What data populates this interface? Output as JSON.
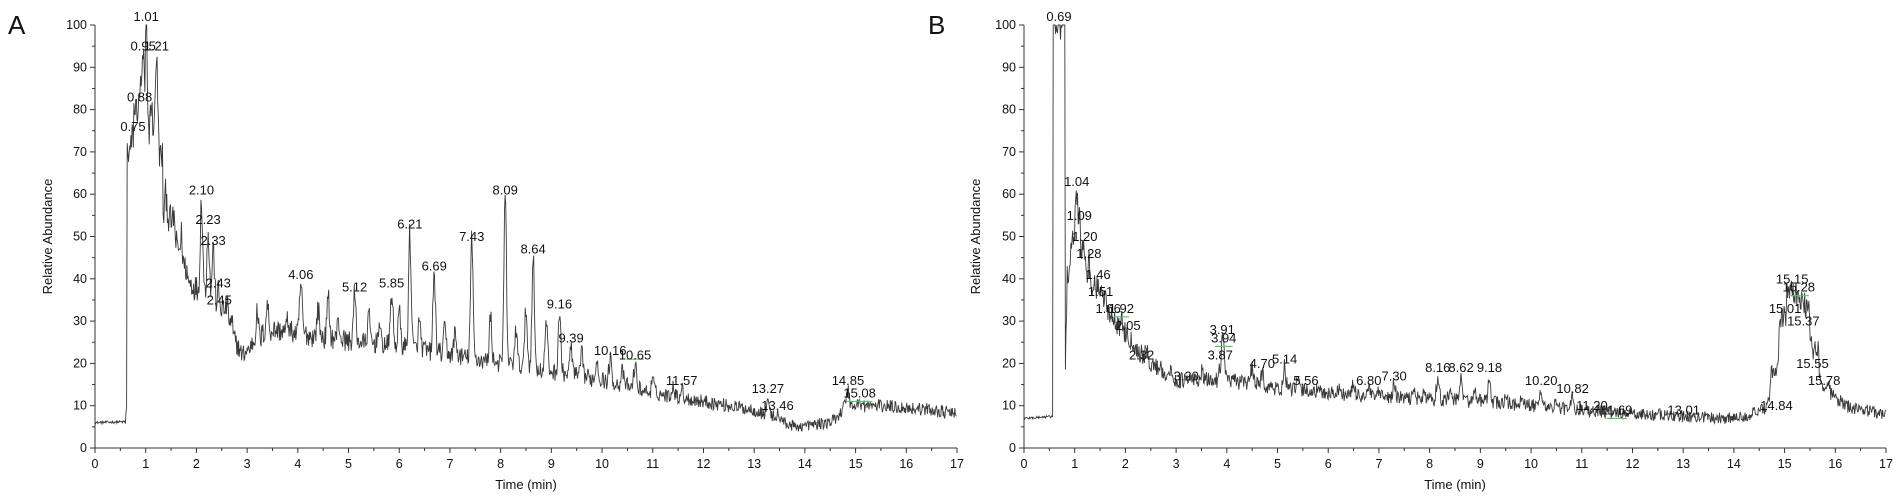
{
  "chart_data": [
    {
      "type": "line",
      "panel": "A",
      "xlabel": "Time (min)",
      "ylabel": "Relative Abundance",
      "xlim": [
        0,
        17
      ],
      "ylim": [
        0,
        100
      ],
      "xticks": [
        0,
        1,
        2,
        3,
        4,
        5,
        6,
        7,
        8,
        9,
        10,
        11,
        12,
        13,
        14,
        15,
        16,
        17
      ],
      "yticks": [
        0,
        10,
        20,
        30,
        40,
        50,
        60,
        70,
        80,
        90,
        100
      ],
      "baseline": [
        [
          0,
          6
        ],
        [
          0.6,
          6.2
        ],
        [
          0.7,
          20
        ],
        [
          0.75,
          70
        ],
        [
          0.8,
          40
        ],
        [
          0.9,
          90
        ],
        [
          1.0,
          60
        ],
        [
          1.1,
          82
        ],
        [
          1.3,
          58
        ],
        [
          1.6,
          45
        ],
        [
          1.8,
          40
        ],
        [
          2.5,
          32
        ],
        [
          2.9,
          22
        ],
        [
          3.5,
          28
        ],
        [
          4.5,
          26
        ],
        [
          6,
          24
        ],
        [
          8,
          20
        ],
        [
          9,
          18
        ],
        [
          10,
          16
        ],
        [
          11,
          13
        ],
        [
          12,
          11
        ],
        [
          13,
          9
        ],
        [
          13.8,
          5
        ],
        [
          14.5,
          6
        ],
        [
          14.85,
          10
        ],
        [
          15.5,
          10
        ],
        [
          16.5,
          9
        ],
        [
          17,
          8
        ]
      ],
      "peaks": [
        {
          "x": 0.75,
          "y": 74,
          "label": "0.75"
        },
        {
          "x": 0.88,
          "y": 81,
          "label": "0.88"
        },
        {
          "x": 0.95,
          "y": 93,
          "label": "0.95"
        },
        {
          "x": 1.01,
          "y": 100,
          "label": "1.01"
        },
        {
          "x": 1.21,
          "y": 93,
          "label": "1.21"
        },
        {
          "x": 2.1,
          "y": 59,
          "label": "2.10"
        },
        {
          "x": 2.23,
          "y": 52,
          "label": "2.23"
        },
        {
          "x": 2.33,
          "y": 47,
          "label": "2.33"
        },
        {
          "x": 2.43,
          "y": 37,
          "label": "2.43"
        },
        {
          "x": 2.45,
          "y": 33,
          "label": "2.45"
        },
        {
          "x": 4.06,
          "y": 39,
          "label": "4.06"
        },
        {
          "x": 5.12,
          "y": 36,
          "label": "5.12"
        },
        {
          "x": 5.85,
          "y": 37,
          "label": "5.85"
        },
        {
          "x": 6.21,
          "y": 51,
          "label": "6.21"
        },
        {
          "x": 6.69,
          "y": 41,
          "label": "6.69"
        },
        {
          "x": 7.43,
          "y": 48,
          "label": "7.43"
        },
        {
          "x": 8.09,
          "y": 59,
          "label": "8.09"
        },
        {
          "x": 8.64,
          "y": 45,
          "label": "8.64"
        },
        {
          "x": 9.16,
          "y": 32,
          "label": "9.16"
        },
        {
          "x": 9.39,
          "y": 24,
          "label": "9.39"
        },
        {
          "x": 10.16,
          "y": 21,
          "label": "10.16"
        },
        {
          "x": 10.65,
          "y": 20,
          "label": "10.65"
        },
        {
          "x": 11.57,
          "y": 14,
          "label": "11.57"
        },
        {
          "x": 13.27,
          "y": 12,
          "label": "13.27"
        },
        {
          "x": 13.46,
          "y": 8,
          "label": "13.46"
        },
        {
          "x": 14.85,
          "y": 14,
          "label": "14.85"
        },
        {
          "x": 15.08,
          "y": 11,
          "label": "15.08"
        }
      ],
      "extra_peaks": [
        [
          1.4,
          60
        ],
        [
          1.55,
          55
        ],
        [
          1.7,
          50
        ],
        [
          2.6,
          34
        ],
        [
          3.2,
          32
        ],
        [
          3.4,
          34
        ],
        [
          3.8,
          30
        ],
        [
          4.4,
          33
        ],
        [
          4.6,
          35
        ],
        [
          4.8,
          30
        ],
        [
          5.4,
          31
        ],
        [
          5.6,
          29
        ],
        [
          6.0,
          32
        ],
        [
          6.4,
          30
        ],
        [
          6.9,
          28
        ],
        [
          7.1,
          27
        ],
        [
          7.8,
          31
        ],
        [
          8.3,
          28
        ],
        [
          8.5,
          33
        ],
        [
          8.9,
          30
        ],
        [
          9.6,
          22
        ],
        [
          9.9,
          21
        ],
        [
          10.4,
          18
        ],
        [
          11.0,
          16
        ],
        [
          11.4,
          15
        ]
      ],
      "markers": [
        [
          10.65,
          0.35,
          21
        ],
        [
          15.08,
          0.5,
          11
        ]
      ]
    },
    {
      "type": "line",
      "panel": "B",
      "xlabel": "Time (min)",
      "ylabel": "Relative Abundance",
      "xlim": [
        0,
        17
      ],
      "ylim": [
        0,
        100
      ],
      "xticks": [
        0,
        1,
        2,
        3,
        4,
        5,
        6,
        7,
        8,
        9,
        10,
        11,
        12,
        13,
        14,
        15,
        16,
        17
      ],
      "yticks": [
        0,
        10,
        20,
        30,
        40,
        50,
        60,
        70,
        80,
        90,
        100
      ],
      "baseline": [
        [
          0,
          7
        ],
        [
          0.6,
          7.5
        ],
        [
          0.65,
          60
        ],
        [
          0.69,
          100
        ],
        [
          0.8,
          8
        ],
        [
          0.85,
          40
        ],
        [
          1.0,
          50
        ],
        [
          1.2,
          40
        ],
        [
          1.5,
          35
        ],
        [
          2.0,
          26
        ],
        [
          2.5,
          20
        ],
        [
          3.0,
          16
        ],
        [
          4.0,
          16
        ],
        [
          5.0,
          14
        ],
        [
          6.0,
          13
        ],
        [
          7.0,
          12
        ],
        [
          8.0,
          11.5
        ],
        [
          9.0,
          11
        ],
        [
          10.0,
          10
        ],
        [
          11.0,
          9
        ],
        [
          12.0,
          8
        ],
        [
          13.0,
          7.5
        ],
        [
          14.0,
          7
        ],
        [
          14.6,
          9
        ],
        [
          14.9,
          20
        ],
        [
          15.0,
          30
        ],
        [
          15.15,
          36
        ],
        [
          15.4,
          32
        ],
        [
          15.6,
          20
        ],
        [
          15.8,
          14
        ],
        [
          16.2,
          10
        ],
        [
          17,
          8
        ]
      ],
      "peaks": [
        {
          "x": 0.69,
          "y": 100,
          "label": "0.69"
        },
        {
          "x": 1.04,
          "y": 61,
          "label": "1.04"
        },
        {
          "x": 1.09,
          "y": 53,
          "label": "1.09"
        },
        {
          "x": 1.2,
          "y": 48,
          "label": "1.20"
        },
        {
          "x": 1.28,
          "y": 44,
          "label": "1.28"
        },
        {
          "x": 1.46,
          "y": 39,
          "label": "1.46"
        },
        {
          "x": 1.51,
          "y": 35,
          "label": "1.51"
        },
        {
          "x": 1.66,
          "y": 31,
          "label": "1.66"
        },
        {
          "x": 1.92,
          "y": 31,
          "label": "1.92"
        },
        {
          "x": 2.05,
          "y": 27,
          "label": "2.05"
        },
        {
          "x": 2.32,
          "y": 20,
          "label": "2.32"
        },
        {
          "x": 3.2,
          "y": 15,
          "label": "3.20"
        },
        {
          "x": 3.87,
          "y": 20,
          "label": "3.87"
        },
        {
          "x": 3.91,
          "y": 26,
          "label": "3.91"
        },
        {
          "x": 3.94,
          "y": 24,
          "label": "3.94"
        },
        {
          "x": 4.7,
          "y": 18,
          "label": "4.70"
        },
        {
          "x": 5.14,
          "y": 19,
          "label": "5.14"
        },
        {
          "x": 5.56,
          "y": 14,
          "label": "5.56"
        },
        {
          "x": 6.8,
          "y": 14,
          "label": "6.80"
        },
        {
          "x": 7.3,
          "y": 15,
          "label": "7.30"
        },
        {
          "x": 8.16,
          "y": 17,
          "label": "8.16"
        },
        {
          "x": 8.62,
          "y": 17,
          "label": "8.62"
        },
        {
          "x": 9.18,
          "y": 17,
          "label": "9.18"
        },
        {
          "x": 10.2,
          "y": 14,
          "label": "10.20"
        },
        {
          "x": 10.82,
          "y": 12,
          "label": "10.82"
        },
        {
          "x": 11.2,
          "y": 8,
          "label": "11.20"
        },
        {
          "x": 11.69,
          "y": 7,
          "label": "11.69"
        },
        {
          "x": 13.01,
          "y": 7,
          "label": "13.01"
        },
        {
          "x": 14.84,
          "y": 8,
          "label": "14.84"
        },
        {
          "x": 15.01,
          "y": 31,
          "label": "15.01"
        },
        {
          "x": 15.15,
          "y": 38,
          "label": "15.15"
        },
        {
          "x": 15.28,
          "y": 36,
          "label": "15.28"
        },
        {
          "x": 15.37,
          "y": 28,
          "label": "15.37"
        },
        {
          "x": 15.55,
          "y": 18,
          "label": "15.55"
        },
        {
          "x": 15.78,
          "y": 14,
          "label": "15.78"
        }
      ],
      "extra_peaks": [
        [
          2.6,
          18
        ],
        [
          2.8,
          17
        ],
        [
          3.5,
          18
        ],
        [
          4.3,
          17
        ],
        [
          4.5,
          19
        ],
        [
          5.4,
          16
        ],
        [
          6.2,
          14
        ],
        [
          6.5,
          15
        ],
        [
          7.0,
          13
        ],
        [
          7.7,
          14
        ],
        [
          7.9,
          13
        ],
        [
          8.4,
          14
        ],
        [
          8.9,
          14
        ],
        [
          9.5,
          12
        ],
        [
          9.8,
          11
        ],
        [
          10.5,
          11
        ],
        [
          12.5,
          8
        ],
        [
          13.5,
          7
        ]
      ],
      "markers": [
        [
          1.92,
          0.3,
          31
        ],
        [
          3.94,
          0.35,
          24
        ],
        [
          11.69,
          0.4,
          7
        ],
        [
          15.28,
          0.4,
          36
        ]
      ]
    }
  ]
}
